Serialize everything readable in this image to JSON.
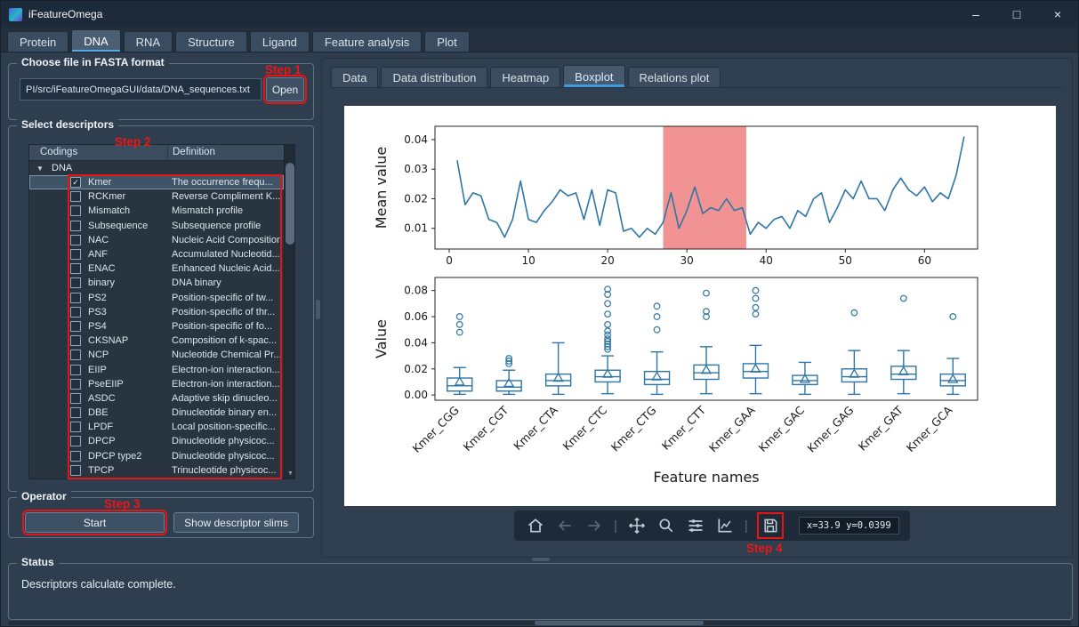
{
  "window": {
    "title": "iFeatureOmega",
    "controls": {
      "minimize": "–",
      "maximize": "□",
      "close": "×"
    }
  },
  "main_tabs": {
    "items": [
      {
        "label": "Protein",
        "selected": false
      },
      {
        "label": "DNA",
        "selected": true
      },
      {
        "label": "RNA",
        "selected": false
      },
      {
        "label": "Structure",
        "selected": false
      },
      {
        "label": "Ligand",
        "selected": false
      },
      {
        "label": "Feature analysis",
        "selected": false
      },
      {
        "label": "Plot",
        "selected": false
      }
    ]
  },
  "file_group": {
    "title": "Choose file in FASTA format",
    "path_value": "PI/src/iFeatureOmegaGUI/data/DNA_sequences.txt",
    "open_label": "Open"
  },
  "descriptors": {
    "title": "Select descriptors",
    "columns": [
      "Codings",
      "Definition"
    ],
    "root": "DNA",
    "rows": [
      {
        "name": "Kmer",
        "definition": "The occurrence frequ...",
        "checked": true,
        "selected": true
      },
      {
        "name": "RCKmer",
        "definition": "Reverse Compliment K...",
        "checked": false,
        "selected": false
      },
      {
        "name": "Mismatch",
        "definition": "Mismatch profile",
        "checked": false,
        "selected": false
      },
      {
        "name": "Subsequence",
        "definition": "Subsequence profile",
        "checked": false,
        "selected": false
      },
      {
        "name": "NAC",
        "definition": "Nucleic Acid Composition",
        "checked": false,
        "selected": false
      },
      {
        "name": "ANF",
        "definition": "Accumulated Nucleotid...",
        "checked": false,
        "selected": false
      },
      {
        "name": "ENAC",
        "definition": "Enhanced Nucleic Acid...",
        "checked": false,
        "selected": false
      },
      {
        "name": "binary",
        "definition": "DNA binary",
        "checked": false,
        "selected": false
      },
      {
        "name": "PS2",
        "definition": "Position-specific of tw...",
        "checked": false,
        "selected": false
      },
      {
        "name": "PS3",
        "definition": "Position-specific of thr...",
        "checked": false,
        "selected": false
      },
      {
        "name": "PS4",
        "definition": "Position-specific of fo...",
        "checked": false,
        "selected": false
      },
      {
        "name": "CKSNAP",
        "definition": "Composition of k-spac...",
        "checked": false,
        "selected": false
      },
      {
        "name": "NCP",
        "definition": "Nucleotide Chemical Pr...",
        "checked": false,
        "selected": false
      },
      {
        "name": "EIIP",
        "definition": "Electron-ion interaction...",
        "checked": false,
        "selected": false
      },
      {
        "name": "PseEIIP",
        "definition": "Electron-ion interaction...",
        "checked": false,
        "selected": false
      },
      {
        "name": "ASDC",
        "definition": "Adaptive skip dinucleo...",
        "checked": false,
        "selected": false
      },
      {
        "name": "DBE",
        "definition": "Dinucleotide binary en...",
        "checked": false,
        "selected": false
      },
      {
        "name": "LPDF",
        "definition": "Local position-specific...",
        "checked": false,
        "selected": false
      },
      {
        "name": "DPCP",
        "definition": "Dinucleotide physicoc...",
        "checked": false,
        "selected": false
      },
      {
        "name": "DPCP type2",
        "definition": "Dinucleotide physicoc...",
        "checked": false,
        "selected": false
      },
      {
        "name": "TPCP",
        "definition": "Trinucleotide physicoc...",
        "checked": false,
        "selected": false
      }
    ]
  },
  "operator": {
    "title": "Operator",
    "start_label": "Start",
    "slims_label": "Show descriptor slims"
  },
  "plot_tabs": {
    "items": [
      {
        "label": "Data",
        "selected": false
      },
      {
        "label": "Data distribution",
        "selected": false
      },
      {
        "label": "Heatmap",
        "selected": false
      },
      {
        "label": "Boxplot",
        "selected": true
      },
      {
        "label": "Relations plot",
        "selected": false
      }
    ]
  },
  "toolbar": {
    "items": [
      {
        "icon": "home-icon"
      },
      {
        "icon": "back-icon",
        "disabled": true
      },
      {
        "icon": "forward-icon",
        "disabled": true
      },
      {
        "sep": true
      },
      {
        "icon": "pan-icon"
      },
      {
        "icon": "zoom-icon"
      },
      {
        "icon": "sliders-icon"
      },
      {
        "icon": "axes-icon"
      },
      {
        "sep": true
      },
      {
        "icon": "save-icon",
        "highlight": true
      }
    ],
    "coords": "x=33.9  y=0.0399"
  },
  "annotations": {
    "step1": "Step 1",
    "step2": "Step 2",
    "step3": "Step 3",
    "step4": "Step 4",
    "color": "#f01414"
  },
  "status": {
    "title": "Status",
    "message": "Descriptors calculate complete."
  },
  "chart_data": [
    {
      "type": "line",
      "title": "",
      "xlabel": "",
      "ylabel": "Mean value",
      "xlim": [
        -1.8,
        66.7
      ],
      "ylim": [
        0.003,
        0.0445
      ],
      "xticks": [
        0,
        10,
        20,
        30,
        40,
        50,
        60
      ],
      "yticks": [
        0.01,
        0.02,
        0.03,
        0.04
      ],
      "line_color": "#2e76a5",
      "highlight_span": {
        "x0": 27,
        "x1": 37.5,
        "color": "#f08080",
        "opacity": 0.85
      },
      "x": [
        1,
        2,
        3,
        4,
        5,
        6,
        7,
        8,
        9,
        10,
        11,
        12,
        13,
        14,
        15,
        16,
        17,
        18,
        19,
        20,
        21,
        22,
        23,
        24,
        25,
        26,
        27,
        28,
        29,
        30,
        31,
        32,
        33,
        34,
        35,
        36,
        37,
        38,
        39,
        40,
        41,
        42,
        43,
        44,
        45,
        46,
        47,
        48,
        49,
        50,
        51,
        52,
        53,
        54,
        55,
        56,
        57,
        58,
        59,
        60,
        61,
        62,
        63,
        64,
        65
      ],
      "y": [
        0.033,
        0.018,
        0.022,
        0.021,
        0.013,
        0.012,
        0.007,
        0.013,
        0.026,
        0.013,
        0.012,
        0.016,
        0.019,
        0.023,
        0.021,
        0.022,
        0.013,
        0.023,
        0.011,
        0.023,
        0.022,
        0.009,
        0.01,
        0.007,
        0.01,
        0.008,
        0.012,
        0.022,
        0.01,
        0.016,
        0.024,
        0.015,
        0.017,
        0.016,
        0.02,
        0.016,
        0.017,
        0.008,
        0.012,
        0.01,
        0.013,
        0.014,
        0.01,
        0.016,
        0.014,
        0.02,
        0.022,
        0.012,
        0.017,
        0.023,
        0.02,
        0.026,
        0.02,
        0.02,
        0.016,
        0.023,
        0.027,
        0.023,
        0.021,
        0.024,
        0.019,
        0.022,
        0.02,
        0.028,
        0.041
      ]
    },
    {
      "type": "boxplot",
      "title": "",
      "xlabel": "Feature names",
      "ylabel": "Value",
      "ylim": [
        -0.004,
        0.09
      ],
      "yticks": [
        0.0,
        0.02,
        0.04,
        0.06,
        0.08
      ],
      "color": "#2e76a5",
      "categories": [
        "Kmer_CGG",
        "Kmer_CGT",
        "Kmer_CTA",
        "Kmer_CTC",
        "Kmer_CTG",
        "Kmer_CTT",
        "Kmer_GAA",
        "Kmer_GAC",
        "Kmer_GAG",
        "Kmer_GAT",
        "Kmer_GCA"
      ],
      "boxes": [
        {
          "whislo": 0.0005,
          "q1": 0.003,
          "med": 0.007,
          "q3": 0.013,
          "whishi": 0.021,
          "mean": 0.01,
          "fliers": [
            0.048,
            0.054,
            0.06
          ]
        },
        {
          "whislo": 0.0005,
          "q1": 0.003,
          "med": 0.006,
          "q3": 0.011,
          "whishi": 0.019,
          "mean": 0.009,
          "fliers": [
            0.024,
            0.026,
            0.028
          ]
        },
        {
          "whislo": 0.0005,
          "q1": 0.007,
          "med": 0.011,
          "q3": 0.016,
          "whishi": 0.04,
          "mean": 0.013,
          "fliers": []
        },
        {
          "whislo": 0.001,
          "q1": 0.01,
          "med": 0.014,
          "q3": 0.019,
          "whishi": 0.03,
          "mean": 0.016,
          "fliers": [
            0.035,
            0.037,
            0.039,
            0.041,
            0.043,
            0.046,
            0.049,
            0.054,
            0.062,
            0.07,
            0.077,
            0.081
          ]
        },
        {
          "whislo": 0.0005,
          "q1": 0.008,
          "med": 0.012,
          "q3": 0.018,
          "whishi": 0.033,
          "mean": 0.014,
          "fliers": [
            0.05,
            0.06,
            0.068
          ]
        },
        {
          "whislo": 0.001,
          "q1": 0.012,
          "med": 0.017,
          "q3": 0.023,
          "whishi": 0.037,
          "mean": 0.019,
          "fliers": [
            0.06,
            0.064,
            0.078
          ]
        },
        {
          "whislo": 0.001,
          "q1": 0.013,
          "med": 0.018,
          "q3": 0.024,
          "whishi": 0.038,
          "mean": 0.02,
          "fliers": [
            0.062,
            0.067,
            0.074,
            0.08
          ]
        },
        {
          "whislo": 0.0005,
          "q1": 0.008,
          "med": 0.011,
          "q3": 0.015,
          "whishi": 0.025,
          "mean": 0.012,
          "fliers": []
        },
        {
          "whislo": 0.0005,
          "q1": 0.01,
          "med": 0.014,
          "q3": 0.02,
          "whishi": 0.034,
          "mean": 0.016,
          "fliers": [
            0.063
          ]
        },
        {
          "whislo": 0.001,
          "q1": 0.012,
          "med": 0.016,
          "q3": 0.022,
          "whishi": 0.034,
          "mean": 0.018,
          "fliers": [
            0.074
          ]
        },
        {
          "whislo": 0.0005,
          "q1": 0.007,
          "med": 0.011,
          "q3": 0.016,
          "whishi": 0.028,
          "mean": 0.012,
          "fliers": [
            0.06
          ]
        }
      ]
    }
  ]
}
